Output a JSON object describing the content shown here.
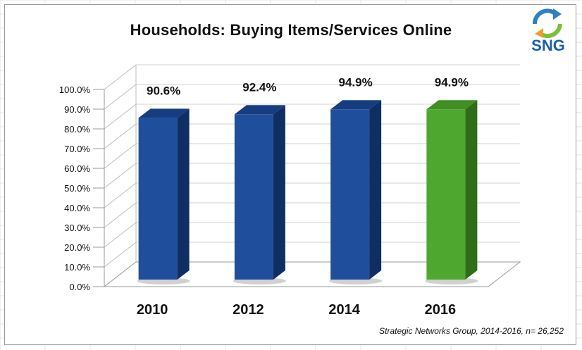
{
  "chart_data": {
    "type": "bar",
    "title": "Households: Buying Items/Services Online",
    "categories": [
      "2010",
      "2012",
      "2014",
      "2016"
    ],
    "values": [
      90.6,
      92.4,
      94.9,
      94.9
    ],
    "data_labels": [
      "90.6%",
      "92.4%",
      "94.9%",
      "94.9%"
    ],
    "bar_colors": [
      "#1f4e9c",
      "#1f4e9c",
      "#1f4e9c",
      "#4ea72e"
    ],
    "ylim": [
      0,
      100
    ],
    "yticks": [
      "0.0%",
      "10.0%",
      "20.0%",
      "30.0%",
      "40.0%",
      "50.0%",
      "60.0%",
      "70.0%",
      "80.0%",
      "90.0%",
      "100.0%"
    ],
    "xlabel": "",
    "ylabel": "",
    "grid": true,
    "style": "3d-column"
  },
  "logo": {
    "text": "SNG"
  },
  "source_note": "Strategic Networks Group, 2014-2016, n= 26,252"
}
